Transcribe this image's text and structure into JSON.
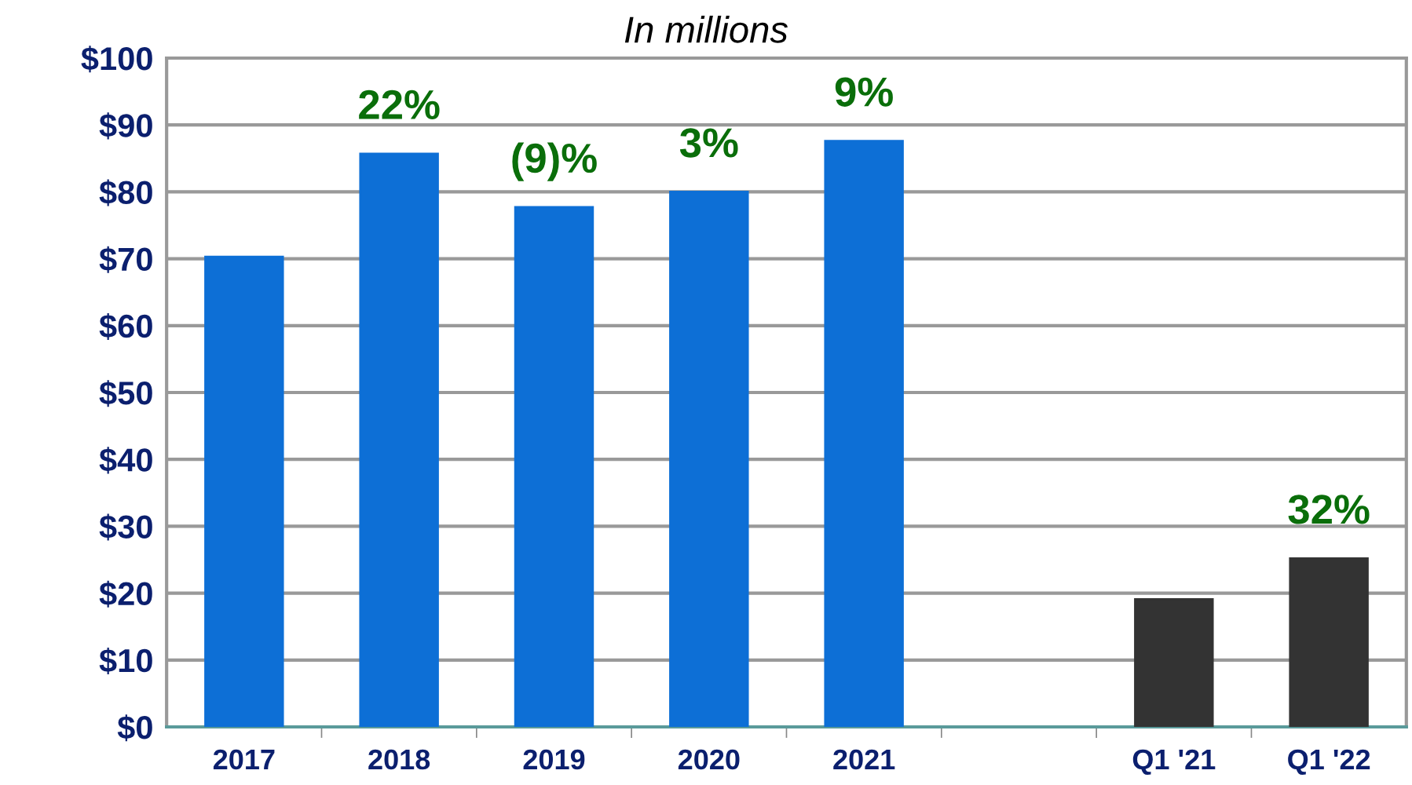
{
  "chart_data": {
    "type": "bar",
    "title": "In millions",
    "categories": [
      "2017",
      "2018",
      "2019",
      "2020",
      "2021",
      null,
      "Q1 '21",
      "Q1 '22"
    ],
    "values": [
      70.3,
      85.7,
      77.7,
      80.0,
      87.6,
      null,
      19.1,
      25.2
    ],
    "colors": [
      "#0d6fd6",
      "#0d6fd6",
      "#0d6fd6",
      "#0d6fd6",
      "#0d6fd6",
      "#0d6fd6",
      "#333333",
      "#333333"
    ],
    "ylim": [
      0,
      100
    ],
    "yticks": [
      {
        "value": 0,
        "label": "$0"
      },
      {
        "value": 10,
        "label": "$10"
      },
      {
        "value": 20,
        "label": "$20"
      },
      {
        "value": 30,
        "label": "$30"
      },
      {
        "value": 40,
        "label": "$40"
      },
      {
        "value": 50,
        "label": "$50"
      },
      {
        "value": 60,
        "label": "$60"
      },
      {
        "value": 70,
        "label": "$70"
      },
      {
        "value": 80,
        "label": "$80"
      },
      {
        "value": 90,
        "label": "$90"
      },
      {
        "value": 100,
        "label": "$100"
      }
    ],
    "grid": "y",
    "annotations": [
      {
        "text": "22%",
        "x": "2018",
        "y": 85.7
      },
      {
        "text": "(9)%",
        "x": "2019",
        "y": 77.7
      },
      {
        "text": "3%",
        "x": "2020",
        "y": 80.0
      },
      {
        "text": "9%",
        "x": "2021",
        "y": 87.6
      },
      {
        "text": "32%",
        "x": "Q1 '22",
        "y": 25.2
      }
    ]
  }
}
